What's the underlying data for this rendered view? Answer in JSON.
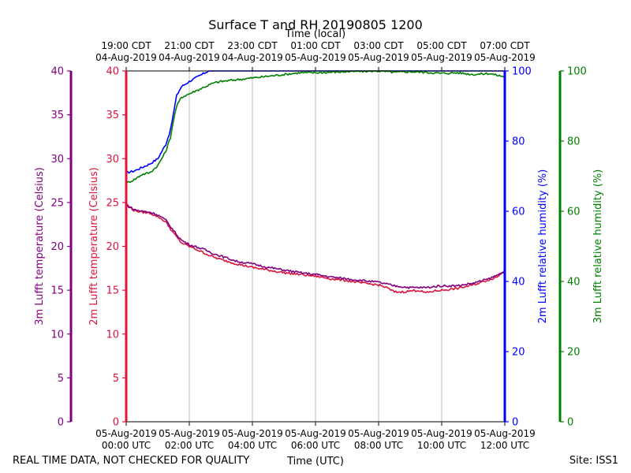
{
  "chart_data": {
    "type": "line",
    "title": "Surface T and RH 20190805 1200",
    "xlabel_bottom": "Time (UTC)",
    "xlabel_top": "Time (local)",
    "xlim_hours_utc": [
      0,
      12
    ],
    "x_ticks_bottom": [
      {
        "hour": 0,
        "line1": "05-Aug-2019",
        "line2": "00:00 UTC"
      },
      {
        "hour": 2,
        "line1": "05-Aug-2019",
        "line2": "02:00 UTC"
      },
      {
        "hour": 4,
        "line1": "05-Aug-2019",
        "line2": "04:00 UTC"
      },
      {
        "hour": 6,
        "line1": "05-Aug-2019",
        "line2": "06:00 UTC"
      },
      {
        "hour": 8,
        "line1": "05-Aug-2019",
        "line2": "08:00 UTC"
      },
      {
        "hour": 10,
        "line1": "05-Aug-2019",
        "line2": "10:00 UTC"
      },
      {
        "hour": 12,
        "line1": "05-Aug-2019",
        "line2": "12:00 UTC"
      }
    ],
    "x_ticks_top": [
      {
        "hour": 0,
        "line1": "19:00 CDT",
        "line2": "04-Aug-2019"
      },
      {
        "hour": 2,
        "line1": "21:00 CDT",
        "line2": "04-Aug-2019"
      },
      {
        "hour": 4,
        "line1": "23:00 CDT",
        "line2": "04-Aug-2019"
      },
      {
        "hour": 6,
        "line1": "01:00 CDT",
        "line2": "05-Aug-2019"
      },
      {
        "hour": 8,
        "line1": "03:00 CDT",
        "line2": "05-Aug-2019"
      },
      {
        "hour": 10,
        "line1": "05:00 CDT",
        "line2": "05-Aug-2019"
      },
      {
        "hour": 12,
        "line1": "07:00 CDT",
        "line2": "05-Aug-2019"
      }
    ],
    "axes": [
      {
        "id": "t3",
        "label": "3m Lufft temperature (Celsius)",
        "color": "#800080",
        "ylim": [
          0,
          40
        ],
        "ticks": [
          "0",
          "5",
          "10",
          "15",
          "20",
          "25",
          "30",
          "35",
          "40"
        ]
      },
      {
        "id": "t2",
        "label": "2m Lufft temperature (Celsius)",
        "color": "#dc143c",
        "ylim": [
          0,
          40
        ],
        "ticks": [
          "0",
          "5",
          "10",
          "15",
          "20",
          "25",
          "30",
          "35",
          "40"
        ]
      },
      {
        "id": "rh2",
        "label": "2m Lufft relative humidity (%)",
        "color": "#0000ff",
        "ylim": [
          0,
          100
        ],
        "ticks": [
          "0",
          "20",
          "40",
          "60",
          "80",
          "100"
        ]
      },
      {
        "id": "rh3",
        "label": "3m Lufft relative humidity (%)",
        "color": "#008000",
        "ylim": [
          0,
          100
        ],
        "ticks": [
          "0",
          "20",
          "40",
          "60",
          "80",
          "100"
        ]
      }
    ],
    "series": [
      {
        "name": "2m Lufft relative humidity",
        "axis": "rh2",
        "color": "#0000ff",
        "x": [
          0,
          0.25,
          0.5,
          0.75,
          1.0,
          1.25,
          1.4,
          1.5,
          1.6,
          1.75,
          2.0,
          2.2,
          2.4,
          2.6,
          3,
          4,
          5,
          6,
          7,
          8,
          9,
          10,
          11,
          12
        ],
        "y": [
          71,
          71.5,
          72.5,
          73.5,
          75,
          79,
          83,
          88,
          93,
          95.5,
          97,
          98,
          99,
          100,
          100.5,
          101,
          101,
          101,
          101,
          101,
          101,
          101,
          101,
          101
        ]
      },
      {
        "name": "3m Lufft relative humidity",
        "axis": "rh3",
        "color": "#008000",
        "x": [
          0,
          0.25,
          0.5,
          0.75,
          1.0,
          1.25,
          1.4,
          1.5,
          1.6,
          1.75,
          2.0,
          2.25,
          2.5,
          2.75,
          3,
          3.5,
          4,
          4.5,
          5,
          5.5,
          6,
          7,
          8,
          8.5,
          9,
          9.5,
          10,
          10.5,
          11,
          11.5,
          12
        ],
        "y": [
          68,
          69,
          70.5,
          71,
          73,
          77,
          81,
          86,
          90,
          92.5,
          93.5,
          94.5,
          95.5,
          96.5,
          97,
          97.5,
          98,
          98.5,
          99,
          99.5,
          99.5,
          99.8,
          100,
          99.6,
          99.8,
          99.6,
          99.3,
          99.5,
          99,
          99.3,
          98.3
        ]
      },
      {
        "name": "2m Lufft temperature",
        "axis": "t2",
        "color": "#dc143c",
        "x": [
          0,
          0.25,
          0.5,
          0.75,
          1.0,
          1.25,
          1.5,
          1.75,
          2.0,
          2.25,
          2.5,
          2.75,
          3,
          3.5,
          4,
          4.5,
          5,
          5.5,
          6,
          6.5,
          7,
          7.5,
          8,
          8.25,
          8.5,
          8.75,
          9,
          9.25,
          9.5,
          9.75,
          10,
          10.5,
          11,
          11.5,
          11.75,
          12
        ],
        "y": [
          24.8,
          24.1,
          23.9,
          23.8,
          23.4,
          22.8,
          21.5,
          20.4,
          20.0,
          19.6,
          19.2,
          18.8,
          18.5,
          18.0,
          17.6,
          17.3,
          17.0,
          16.8,
          16.6,
          16.3,
          16.1,
          15.8,
          15.6,
          15.3,
          14.8,
          14.8,
          14.9,
          15.0,
          14.7,
          14.9,
          15.0,
          15.2,
          15.6,
          16.2,
          16.5,
          17.3
        ]
      },
      {
        "name": "3m Lufft temperature",
        "axis": "t3",
        "color": "#800080",
        "x": [
          0,
          0.25,
          0.5,
          0.75,
          1.0,
          1.25,
          1.5,
          1.75,
          2.0,
          2.25,
          2.5,
          2.75,
          3,
          3.5,
          4,
          4.5,
          5,
          5.5,
          6,
          6.5,
          7,
          7.5,
          8,
          8.5,
          9,
          9.5,
          10,
          10.5,
          11,
          11.5,
          11.75,
          12
        ],
        "y": [
          24.7,
          24.2,
          24.0,
          23.9,
          23.6,
          23.0,
          21.8,
          20.7,
          20.2,
          19.9,
          19.6,
          19.2,
          18.9,
          18.3,
          18.0,
          17.6,
          17.3,
          17.0,
          16.8,
          16.5,
          16.3,
          16.1,
          15.9,
          15.5,
          15.3,
          15.3,
          15.5,
          15.5,
          15.8,
          16.3,
          16.7,
          17.2
        ]
      }
    ],
    "grid": "vertical",
    "footer_left": "REAL TIME DATA, NOT CHECKED FOR QUALITY",
    "footer_right": "Site: ISS1"
  }
}
